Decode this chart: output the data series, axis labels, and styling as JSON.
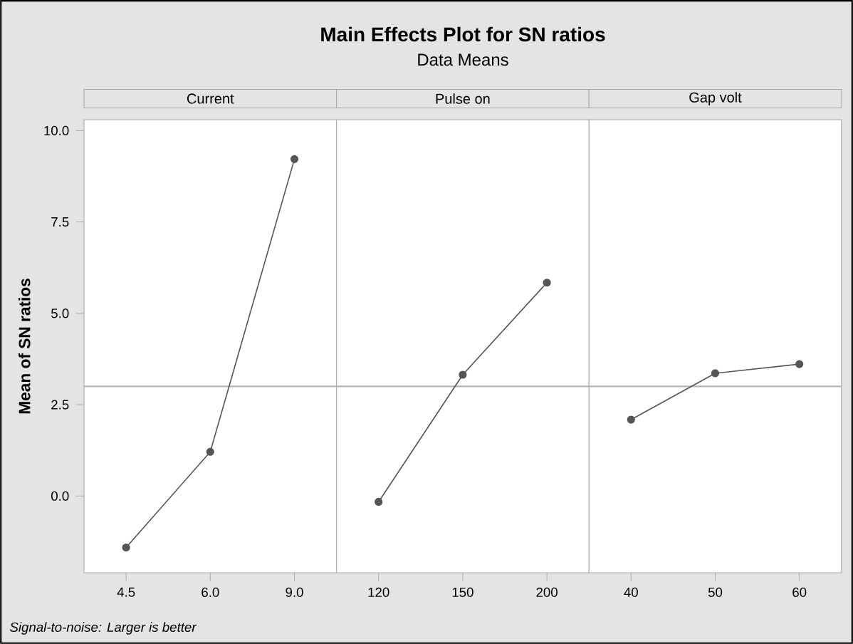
{
  "chart_data": [
    {
      "type": "other",
      "title": "Main Effects Plot for SN ratios",
      "subtitle": "Data Means",
      "annotations": [
        "Signal-to-noise: Larger is better"
      ]
    },
    {
      "type": "line",
      "title": "Current",
      "ylabel": "Mean of SN ratios",
      "categories": [
        "4.5",
        "6.0",
        "9.0"
      ],
      "values": [
        -1.41,
        1.21,
        9.22
      ],
      "color": "#555555",
      "marker": "circle",
      "ylim": [
        -2.1,
        10.3
      ],
      "yticks": [
        {
          "value": 0,
          "label": "0.0"
        },
        {
          "value": 2.5,
          "label": "2.5"
        },
        {
          "value": 5,
          "label": "5.0"
        },
        {
          "value": 7.5,
          "label": "7.5"
        },
        {
          "value": 10,
          "label": "10.0"
        }
      ],
      "ref_lines": [
        {
          "axis": "y",
          "value": 3.0,
          "color": "#b4b4b4"
        }
      ]
    },
    {
      "type": "line",
      "title": "Pulse on",
      "categories": [
        "120",
        "150",
        "200"
      ],
      "values": [
        -0.16,
        3.32,
        5.84
      ],
      "color": "#555555",
      "marker": "circle",
      "ylim": [
        -2.1,
        10.3
      ],
      "tick_labels": "x",
      "ref_lines": [
        {
          "axis": "y",
          "value": 3.0,
          "color": "#b4b4b4"
        }
      ]
    },
    {
      "type": "line",
      "title": "Gap volt",
      "categories": [
        "40",
        "50",
        "60"
      ],
      "values": [
        2.09,
        3.36,
        3.61
      ],
      "color": "#555555",
      "marker": "circle",
      "ylim": [
        -2.1,
        10.3
      ],
      "tick_labels": "x",
      "ref_lines": [
        {
          "axis": "y",
          "value": 3.0,
          "color": "#b4b4b4"
        }
      ]
    }
  ]
}
